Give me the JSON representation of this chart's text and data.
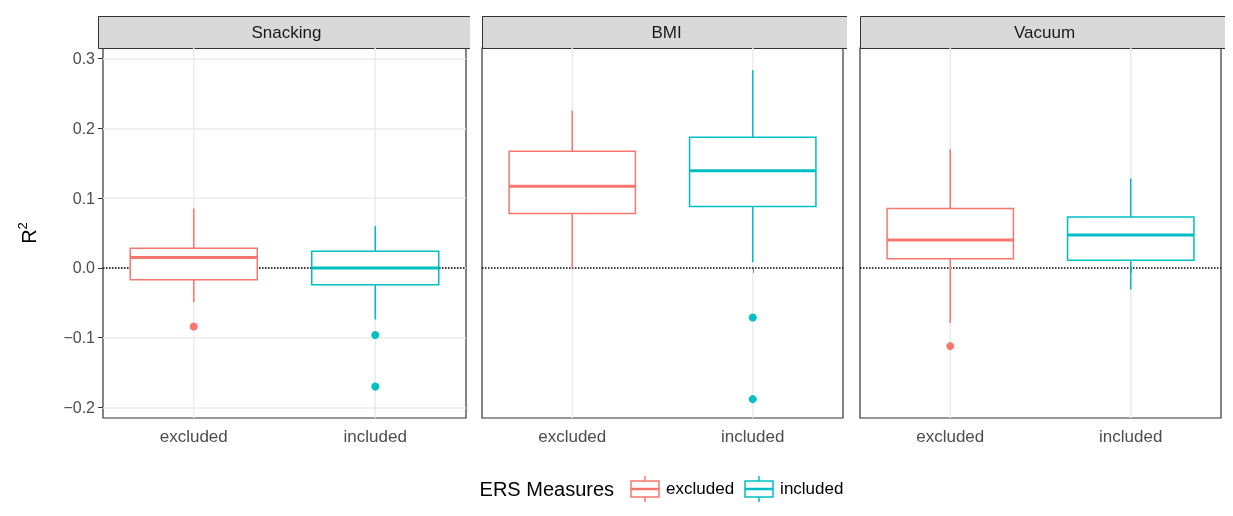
{
  "chart_data": [
    {
      "type": "box",
      "title": "Snacking",
      "ylabel": "R$^{2}$",
      "legend": "bottom",
      "legend_title": "ERS Measures",
      "categories": [
        "excluded",
        "included"
      ],
      "ylim": [
        -0.215,
        0.315
      ],
      "yticks": [
        {
          "value": -0.2,
          "label": "−0.2"
        },
        {
          "value": -0.1,
          "label": "−0.1"
        },
        {
          "value": 0,
          "label": "0.0"
        },
        {
          "value": 0.1,
          "label": "0.1"
        },
        {
          "value": 0.2,
          "label": "0.2"
        },
        {
          "value": 0.3,
          "label": "0.3"
        }
      ],
      "grid": true,
      "ref_lines": [
        {
          "axis": "y",
          "value": 0,
          "line_style": "dotted",
          "color": "#000000"
        }
      ],
      "series": [
        {
          "name": "excluded",
          "color": "#f8766d",
          "boxes": [
            {
              "low": -0.049,
              "q1": -0.017,
              "median": 0.015,
              "q3": 0.028,
              "high": 0.085,
              "outliers": [
                -0.084
              ]
            },
            null
          ]
        },
        {
          "name": "included",
          "color": "#00bfc4",
          "boxes": [
            null,
            {
              "low": -0.074,
              "q1": -0.024,
              "median": 0.0,
              "q3": 0.024,
              "high": 0.06,
              "outliers": [
                -0.096,
                -0.17
              ]
            }
          ]
        }
      ]
    },
    {
      "type": "box",
      "title": "BMI",
      "tick_labels": "x",
      "categories": [
        "excluded",
        "included"
      ],
      "ylim": [
        -0.215,
        0.315
      ],
      "grid": true,
      "ref_lines": [
        {
          "axis": "y",
          "value": 0,
          "line_style": "dotted",
          "color": "#000000"
        }
      ],
      "series": [
        {
          "color": "#f8766d",
          "boxes": [
            {
              "low": 0.0,
              "q1": 0.078,
              "median": 0.117,
              "q3": 0.167,
              "high": 0.225
            },
            null
          ]
        },
        {
          "color": "#00bfc4",
          "boxes": [
            null,
            {
              "low": 0.008,
              "q1": 0.088,
              "median": 0.139,
              "q3": 0.187,
              "high": 0.283,
              "outliers": [
                -0.071,
                -0.188
              ]
            }
          ]
        }
      ]
    },
    {
      "type": "box",
      "title": "Vacuum",
      "tick_labels": "x",
      "categories": [
        "excluded",
        "included"
      ],
      "ylim": [
        -0.215,
        0.315
      ],
      "grid": true,
      "ref_lines": [
        {
          "axis": "y",
          "value": 0,
          "line_style": "dotted",
          "color": "#000000"
        }
      ],
      "series": [
        {
          "color": "#f8766d",
          "boxes": [
            {
              "low": -0.079,
              "q1": 0.013,
              "median": 0.04,
              "q3": 0.085,
              "high": 0.17,
              "outliers": [
                -0.112
              ]
            },
            null
          ]
        },
        {
          "color": "#00bfc4",
          "boxes": [
            null,
            {
              "low": -0.031,
              "q1": 0.011,
              "median": 0.047,
              "q3": 0.073,
              "high": 0.128
            }
          ]
        }
      ]
    }
  ]
}
